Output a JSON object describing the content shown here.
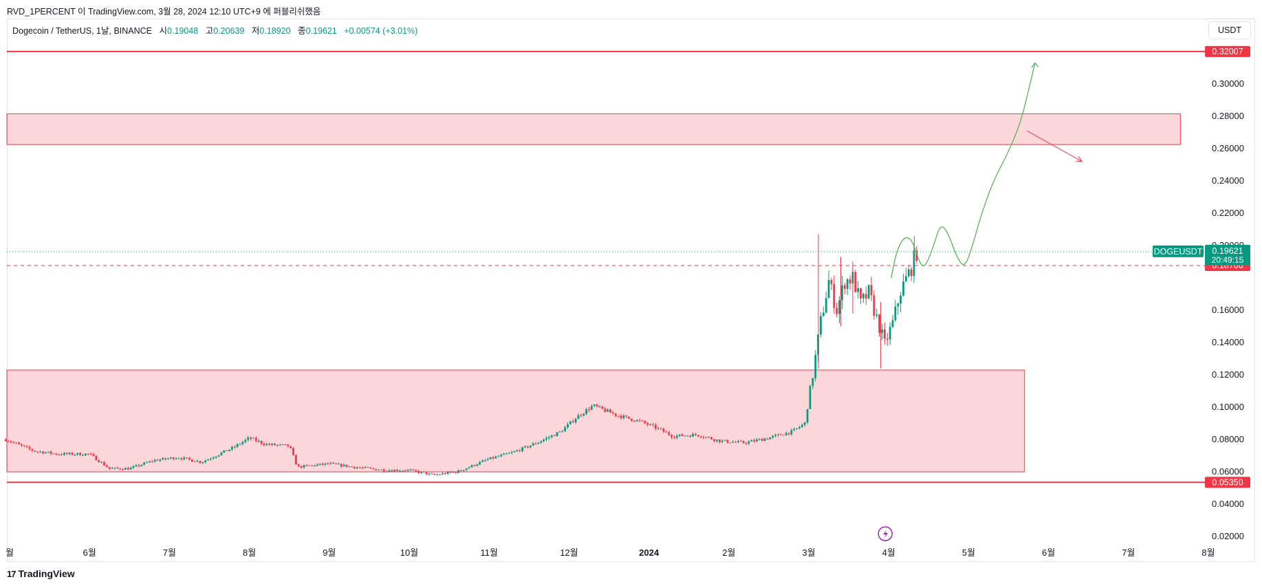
{
  "header": {
    "published": "RVD_1PERCENT 이 TradingView.com, 3월 28, 2024 12:10 UTC+9 에 퍼블리쉬했음"
  },
  "legend": {
    "symbol": "Dogecoin / TetherUS, 1날, BINANCE",
    "open_label": "시",
    "open": "0.19048",
    "high_label": "고",
    "high": "0.20639",
    "low_label": "저",
    "low": "0.18920",
    "close_label": "종",
    "close": "0.19621",
    "change": "+0.00574 (+3.01%)"
  },
  "currency": "USDT",
  "footer": {
    "brand": "TradingView",
    "logo_text": "17"
  },
  "chart_data": {
    "type": "candlestick",
    "symbol": "DOGEUSDT",
    "y_ticks": [
      "0.30000",
      "0.28000",
      "0.26000",
      "0.24000",
      "0.22000",
      "0.20000",
      "0.16000",
      "0.14000",
      "0.12000",
      "0.10000",
      "0.08000",
      "0.06000",
      "0.04000",
      "0.02000"
    ],
    "y_range": [
      0.012,
      0.322
    ],
    "x_ticks": [
      {
        "label": "월",
        "t": 0.0
      },
      {
        "label": "6월",
        "t": 1.0
      },
      {
        "label": "7월",
        "t": 2.0
      },
      {
        "label": "8월",
        "t": 3.0
      },
      {
        "label": "9월",
        "t": 4.0
      },
      {
        "label": "10월",
        "t": 5.0
      },
      {
        "label": "11월",
        "t": 6.0
      },
      {
        "label": "12월",
        "t": 7.0
      },
      {
        "label": "2024",
        "t": 8.0
      },
      {
        "label": "2월",
        "t": 9.0
      },
      {
        "label": "3월",
        "t": 10.0
      },
      {
        "label": "4월",
        "t": 11.0
      },
      {
        "label": "5월",
        "t": 12.0
      },
      {
        "label": "6월",
        "t": 13.0
      },
      {
        "label": "7월",
        "t": 14.0
      },
      {
        "label": "8월",
        "t": 15.0
      }
    ],
    "price_path": [
      [
        -0.05,
        0.08
      ],
      [
        0.3,
        0.073
      ],
      [
        0.6,
        0.071
      ],
      [
        1.0,
        0.071
      ],
      [
        1.25,
        0.062
      ],
      [
        1.5,
        0.062
      ],
      [
        1.8,
        0.067
      ],
      [
        2.1,
        0.069
      ],
      [
        2.4,
        0.066
      ],
      [
        2.8,
        0.075
      ],
      [
        3.0,
        0.081
      ],
      [
        3.2,
        0.077
      ],
      [
        3.5,
        0.076
      ],
      [
        3.6,
        0.063
      ],
      [
        3.8,
        0.064
      ],
      [
        4.0,
        0.065
      ],
      [
        4.3,
        0.063
      ],
      [
        4.7,
        0.061
      ],
      [
        5.0,
        0.061
      ],
      [
        5.3,
        0.058
      ],
      [
        5.6,
        0.06
      ],
      [
        5.8,
        0.064
      ],
      [
        6.0,
        0.068
      ],
      [
        6.3,
        0.072
      ],
      [
        6.6,
        0.078
      ],
      [
        6.9,
        0.085
      ],
      [
        7.1,
        0.094
      ],
      [
        7.3,
        0.101
      ],
      [
        7.6,
        0.095
      ],
      [
        7.9,
        0.091
      ],
      [
        8.1,
        0.087
      ],
      [
        8.3,
        0.082
      ],
      [
        8.6,
        0.083
      ],
      [
        8.9,
        0.079
      ],
      [
        9.2,
        0.078
      ],
      [
        9.5,
        0.081
      ],
      [
        9.8,
        0.085
      ],
      [
        9.95,
        0.09
      ],
      [
        10.05,
        0.12
      ],
      [
        10.15,
        0.153
      ],
      [
        10.25,
        0.178
      ],
      [
        10.35,
        0.16
      ],
      [
        10.45,
        0.178
      ],
      [
        10.55,
        0.18
      ],
      [
        10.65,
        0.164
      ],
      [
        10.75,
        0.171
      ],
      [
        10.85,
        0.155
      ],
      [
        10.95,
        0.139
      ],
      [
        11.05,
        0.152
      ],
      [
        11.15,
        0.172
      ],
      [
        11.28,
        0.186
      ],
      [
        11.35,
        0.196
      ]
    ],
    "wicks": [
      {
        "t": 10.12,
        "low": 0.124,
        "high": 0.207
      },
      {
        "t": 10.4,
        "low": 0.15,
        "high": 0.193
      },
      {
        "t": 10.55,
        "low": 0.158,
        "high": 0.19
      },
      {
        "t": 10.9,
        "low": 0.124,
        "high": 0.165
      },
      {
        "t": 11.32,
        "low": 0.186,
        "high": 0.206
      }
    ],
    "horizontal_lines": [
      {
        "price": 0.32007,
        "label": "0.32007",
        "style": "solid"
      },
      {
        "price": 0.0535,
        "label": "0.05350",
        "style": "solid"
      },
      {
        "price": 0.18766,
        "label": "0.18766",
        "style": "dashed"
      }
    ],
    "current_price": {
      "price": 0.19621,
      "symbol": "DOGEUSDT",
      "label": "0.19621",
      "countdown": "20:49:15"
    },
    "zones": [
      {
        "t_start": -0.1,
        "t_end": 14.65,
        "low": 0.2625,
        "high": 0.2815
      },
      {
        "t_start": -0.1,
        "t_end": 12.7,
        "low": 0.06,
        "high": 0.123
      }
    ],
    "projection_up": [
      [
        11.03,
        0.18
      ],
      [
        11.1,
        0.197
      ],
      [
        11.2,
        0.206
      ],
      [
        11.3,
        0.203
      ],
      [
        11.38,
        0.19
      ],
      [
        11.45,
        0.186
      ],
      [
        11.55,
        0.198
      ],
      [
        11.65,
        0.214
      ],
      [
        11.75,
        0.207
      ],
      [
        11.85,
        0.193
      ],
      [
        11.95,
        0.186
      ],
      [
        12.05,
        0.2
      ],
      [
        12.15,
        0.218
      ],
      [
        12.3,
        0.239
      ],
      [
        12.5,
        0.258
      ],
      [
        12.65,
        0.276
      ],
      [
        12.75,
        0.296
      ],
      [
        12.83,
        0.313
      ]
    ],
    "projection_down": [
      [
        12.73,
        0.271
      ],
      [
        13.42,
        0.252
      ]
    ]
  }
}
